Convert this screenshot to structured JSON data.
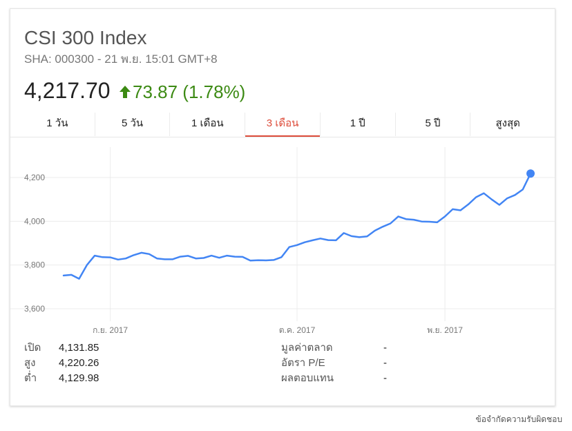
{
  "header": {
    "title": "CSI 300 Index",
    "subtitle": "SHA: 000300 - 21 พ.ย. 15:01 GMT+8",
    "price": "4,217.70",
    "change": "73.87 (1.78%)",
    "change_color": "#3c8a13"
  },
  "tabs": [
    {
      "label": "1 วัน"
    },
    {
      "label": "5 วัน"
    },
    {
      "label": "1 เดือน"
    },
    {
      "label": "3 เดือน",
      "active": true
    },
    {
      "label": "1 ปี"
    },
    {
      "label": "5 ปี"
    },
    {
      "label": "สูงสุด"
    }
  ],
  "chart_data": {
    "type": "line",
    "title": "",
    "xlabel": "",
    "ylabel": "",
    "ylim": [
      3600,
      4250
    ],
    "yticks": [
      3600,
      3800,
      4000,
      4200
    ],
    "ytick_labels": [
      "3,600",
      "3,800",
      "4,000",
      "4,200"
    ],
    "xticks": [
      {
        "index": 6,
        "label": "ก.ย. 2017"
      },
      {
        "index": 30,
        "label": "ต.ค. 2017"
      },
      {
        "index": 49,
        "label": "พ.ย. 2017"
      }
    ],
    "grid": true,
    "line_color": "#4285f4",
    "values": [
      3752,
      3755,
      3737,
      3800,
      3843,
      3836,
      3835,
      3825,
      3830,
      3845,
      3856,
      3850,
      3830,
      3826,
      3826,
      3838,
      3842,
      3830,
      3832,
      3843,
      3833,
      3843,
      3838,
      3837,
      3820,
      3822,
      3821,
      3823,
      3836,
      3882,
      3891,
      3904,
      3913,
      3921,
      3914,
      3913,
      3946,
      3932,
      3927,
      3931,
      3957,
      3975,
      3990,
      4022,
      4010,
      4007,
      3999,
      3998,
      3995,
      4022,
      4055,
      4050,
      4077,
      4110,
      4128,
      4100,
      4075,
      4105,
      4120,
      4145,
      4218
    ]
  },
  "stats_left": [
    {
      "label": "เปิด",
      "value": "4,131.85"
    },
    {
      "label": "สูง",
      "value": "4,220.26"
    },
    {
      "label": "ต่ำ",
      "value": "4,129.98"
    }
  ],
  "stats_right": [
    {
      "label": "มูลค่าตลาด",
      "value": "-"
    },
    {
      "label": "อัตรา P/E",
      "value": "-"
    },
    {
      "label": "ผลตอบแทน",
      "value": "-"
    }
  ],
  "disclaimer": "ข้อจำกัดความรับผิดชอบ"
}
